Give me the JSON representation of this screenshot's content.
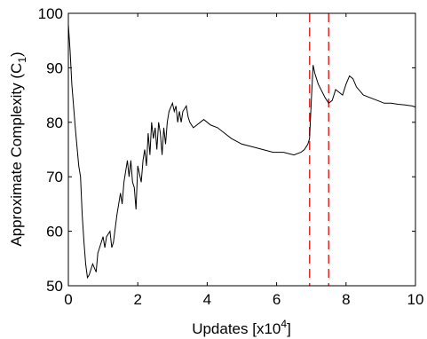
{
  "chart_data": {
    "type": "line",
    "xlabel": "Updates [x10",
    "xlabel_superscript": "4",
    "xlabel_suffix": "]",
    "ylabel": "Approximate Complexity (C",
    "ylabel_subscript": "1",
    "ylabel_suffix": ")",
    "xlim": [
      0,
      10
    ],
    "ylim": [
      50,
      100
    ],
    "xticks": [
      0,
      2,
      4,
      6,
      8,
      10
    ],
    "yticks": [
      50,
      60,
      70,
      80,
      90,
      100
    ],
    "grid": false,
    "series": [
      {
        "color": "#000000",
        "x": [
          0.0,
          0.05,
          0.1,
          0.2,
          0.3,
          0.35,
          0.4,
          0.45,
          0.5,
          0.55,
          0.6,
          0.65,
          0.7,
          0.8,
          0.85,
          0.9,
          1.0,
          1.05,
          1.1,
          1.2,
          1.25,
          1.3,
          1.4,
          1.5,
          1.55,
          1.6,
          1.7,
          1.75,
          1.8,
          1.85,
          1.9,
          1.95,
          2.0,
          2.1,
          2.15,
          2.2,
          2.25,
          2.3,
          2.35,
          2.4,
          2.45,
          2.5,
          2.55,
          2.6,
          2.65,
          2.7,
          2.75,
          2.8,
          2.85,
          2.9,
          3.0,
          3.05,
          3.1,
          3.15,
          3.2,
          3.25,
          3.3,
          3.35,
          3.4,
          3.45,
          3.5,
          3.6,
          3.7,
          3.8,
          3.9,
          4.0,
          4.1,
          4.3,
          4.5,
          4.7,
          5.0,
          5.3,
          5.6,
          5.9,
          6.2,
          6.5,
          6.7,
          6.8,
          6.9,
          6.95,
          7.0,
          7.05,
          7.1,
          7.2,
          7.4,
          7.5,
          7.6,
          7.7,
          7.8,
          7.9,
          8.0,
          8.1,
          8.2,
          8.3,
          8.5,
          8.7,
          8.9,
          9.1,
          9.3,
          9.5,
          9.7,
          9.9,
          10.0
        ],
        "y": [
          98,
          93,
          87,
          79,
          72,
          70,
          63,
          58,
          54,
          51.5,
          52,
          53,
          54,
          52.5,
          56,
          57,
          59,
          57,
          59,
          60,
          57,
          58,
          63,
          67,
          65,
          69,
          73,
          70,
          73,
          69,
          68,
          64,
          72,
          69,
          73,
          75,
          72,
          78,
          74,
          80,
          77,
          79,
          75,
          80,
          78,
          74,
          79,
          76,
          80,
          82,
          83.5,
          82,
          83,
          80,
          82,
          80,
          82,
          82.5,
          83,
          81,
          80,
          79,
          79.5,
          80,
          80.5,
          80,
          79.5,
          79,
          78,
          77,
          76,
          75.5,
          75,
          74.5,
          74.5,
          74,
          74.5,
          75,
          76,
          77,
          84,
          90.5,
          89,
          87,
          84.5,
          83.5,
          84,
          86,
          85.5,
          85,
          87,
          88.5,
          88,
          86.5,
          85,
          84.5,
          84,
          83.5,
          83.5,
          83.3,
          83.2,
          83,
          82.8
        ]
      }
    ],
    "annotations": [
      {
        "type": "vertical-line",
        "x": 6.95,
        "color": "#e8262a",
        "style": "dashed"
      },
      {
        "type": "vertical-line",
        "x": 7.5,
        "color": "#e8262a",
        "style": "dashed"
      }
    ]
  }
}
